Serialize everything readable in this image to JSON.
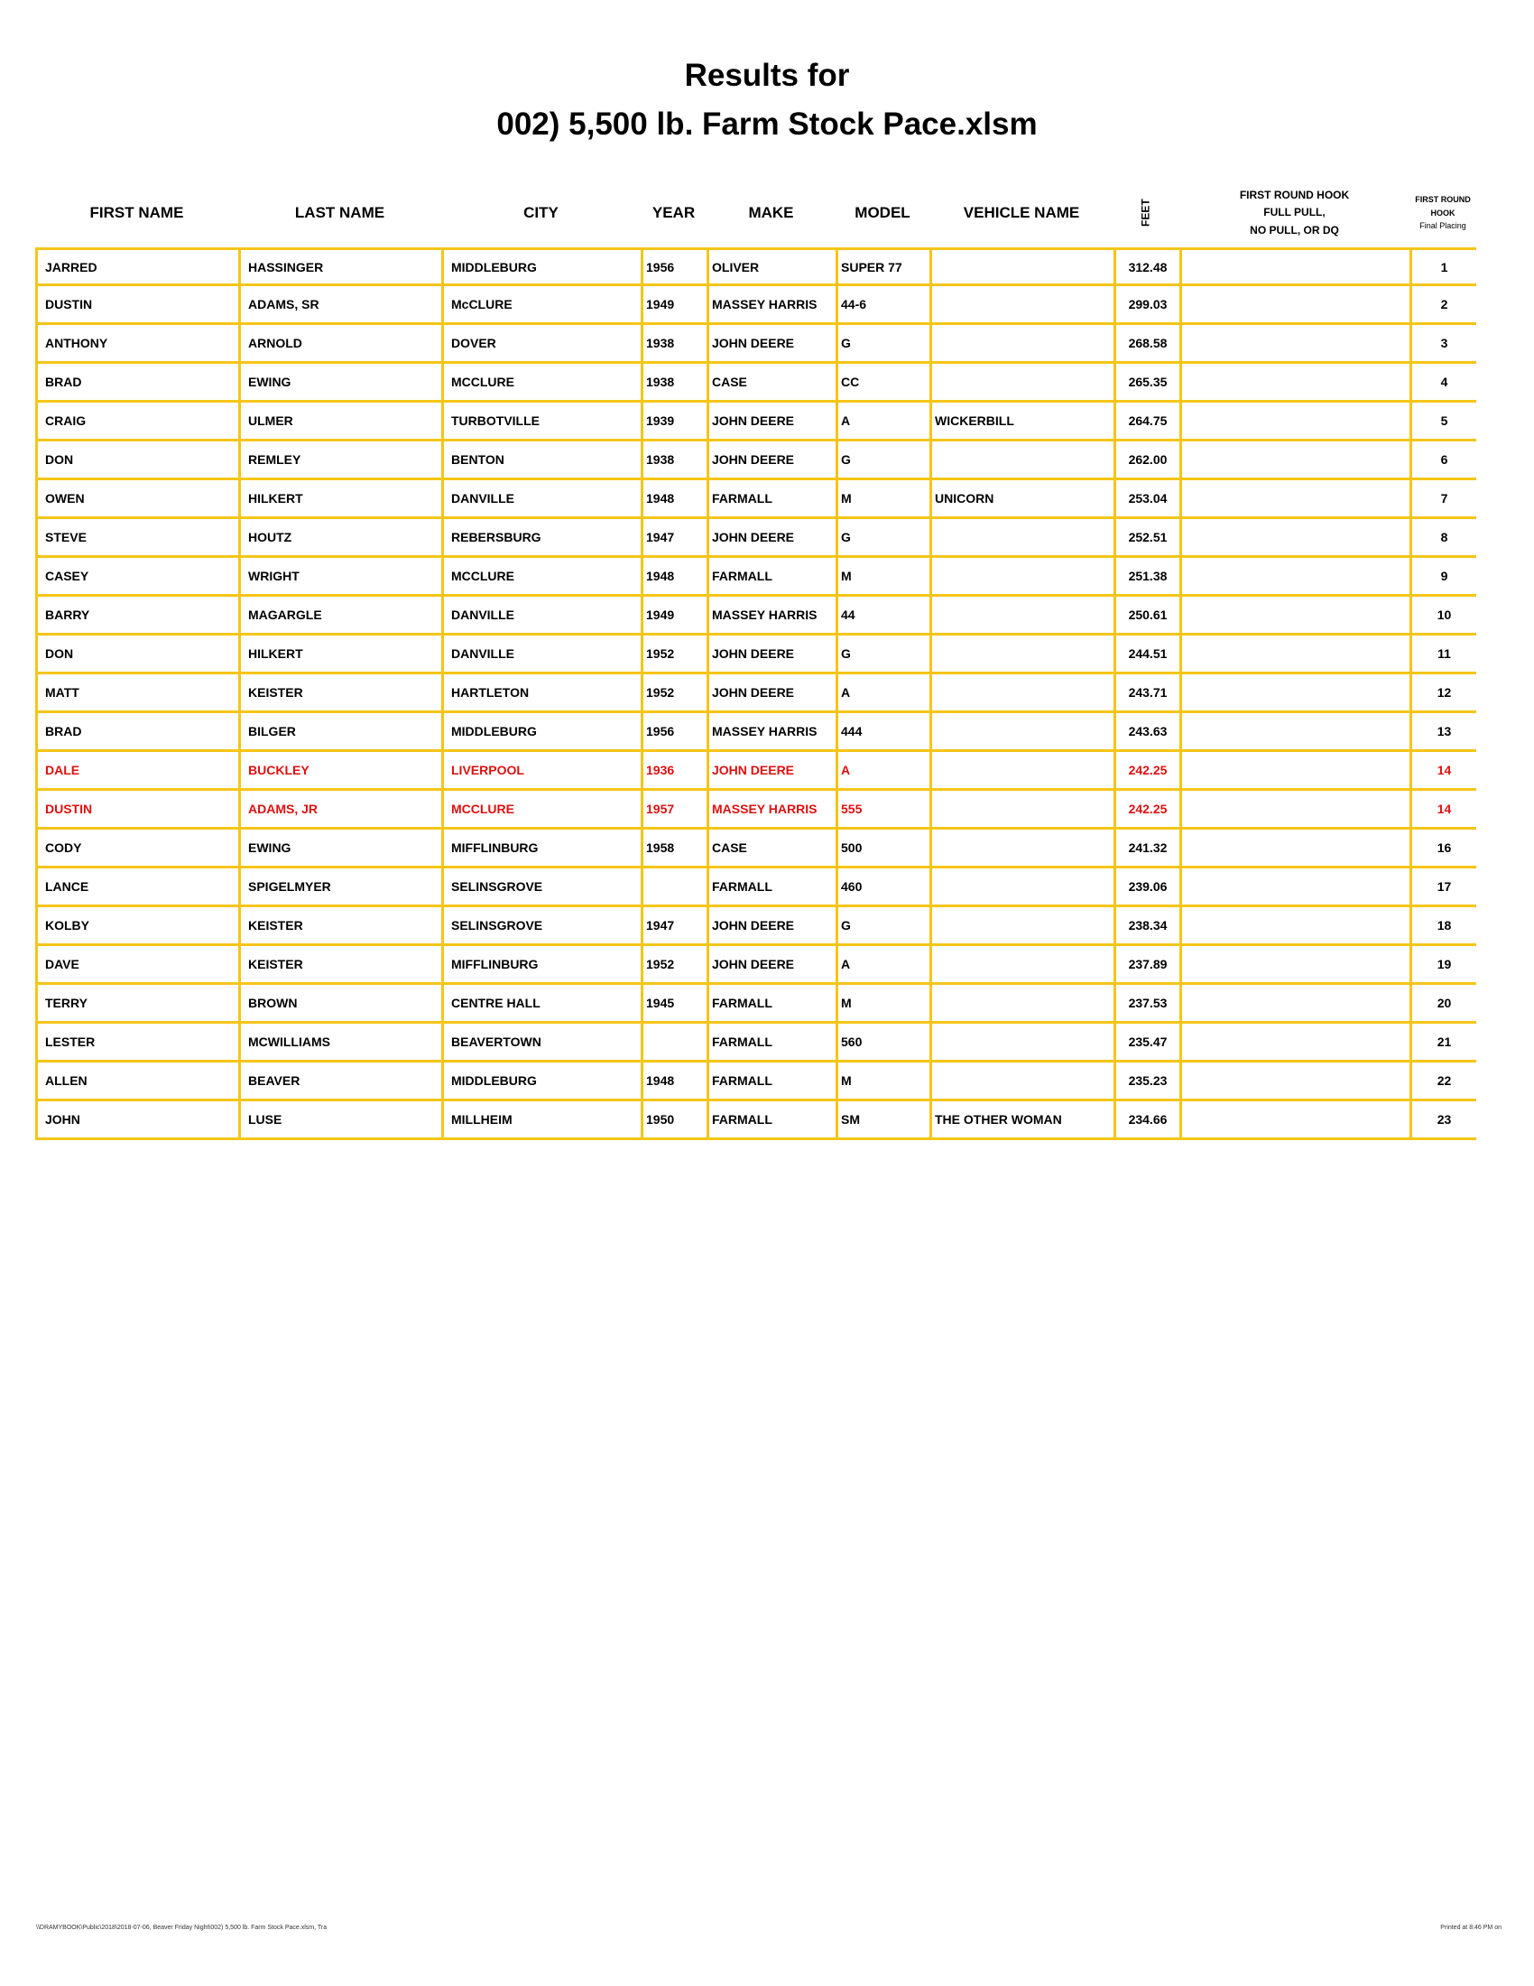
{
  "header": {
    "title_lines": [
      "Results for",
      "002) 5,500 lb. Farm Stock Pace.xlsm"
    ]
  },
  "table": {
    "columns": [
      [
        "FIRST NAME"
      ],
      [
        "LAST NAME"
      ],
      [
        "CITY"
      ],
      [
        "YEAR"
      ],
      [
        "MAKE"
      ],
      [
        "MODEL"
      ],
      [
        "VEHICLE NAME"
      ],
      [
        "FEET"
      ],
      [
        "FIRST ROUND HOOK",
        "FULL PULL,",
        "NO PULL, OR DQ"
      ],
      [
        "FIRST ROUND",
        "HOOK",
        "Final Placing"
      ]
    ],
    "rows": [
      {
        "cells": [
          "JARRED",
          "HASSINGER",
          "MIDDLEBURG",
          "1956",
          "OLIVER",
          "SUPER 77",
          null,
          "312.48",
          null,
          "1"
        ]
      },
      {
        "cells": [
          "DUSTIN",
          "ADAMS, SR",
          "McCLURE",
          "1949",
          "MASSEY HARRIS",
          "44-6",
          null,
          "299.03",
          null,
          "2"
        ]
      },
      {
        "cells": [
          "ANTHONY",
          "ARNOLD",
          "DOVER",
          "1938",
          "JOHN DEERE",
          "G",
          null,
          "268.58",
          null,
          "3"
        ]
      },
      {
        "cells": [
          "BRAD",
          "EWING",
          "MCCLURE",
          "1938",
          "CASE",
          "CC",
          null,
          "265.35",
          null,
          "4"
        ]
      },
      {
        "cells": [
          "CRAIG",
          "ULMER",
          "TURBOTVILLE",
          "1939",
          "JOHN DEERE",
          "A",
          "WICKERBILL",
          "264.75",
          null,
          "5"
        ]
      },
      {
        "cells": [
          "DON",
          "REMLEY",
          "BENTON",
          "1938",
          "JOHN DEERE",
          "G",
          null,
          "262.00",
          null,
          "6"
        ]
      },
      {
        "cells": [
          "OWEN",
          "HILKERT",
          "DANVILLE",
          "1948",
          "FARMALL",
          "M",
          "UNICORN",
          "253.04",
          null,
          "7"
        ]
      },
      {
        "cells": [
          "STEVE",
          "HOUTZ",
          "REBERSBURG",
          "1947",
          "JOHN DEERE",
          "G",
          null,
          "252.51",
          null,
          "8"
        ]
      },
      {
        "cells": [
          "CASEY",
          "WRIGHT",
          "MCCLURE",
          "1948",
          "FARMALL",
          "M",
          null,
          "251.38",
          null,
          "9"
        ]
      },
      {
        "cells": [
          "BARRY",
          "MAGARGLE",
          "DANVILLE",
          "1949",
          "MASSEY HARRIS",
          "44",
          null,
          "250.61",
          null,
          "10"
        ]
      },
      {
        "cells": [
          "DON",
          "HILKERT",
          "DANVILLE",
          "1952",
          "JOHN DEERE",
          "G",
          null,
          "244.51",
          null,
          "11"
        ]
      },
      {
        "cells": [
          "MATT",
          "KEISTER",
          "HARTLETON",
          "1952",
          "JOHN DEERE",
          "A",
          null,
          "243.71",
          null,
          "12"
        ]
      },
      {
        "cells": [
          "BRAD",
          "BILGER",
          "MIDDLEBURG",
          "1956",
          "MASSEY HARRIS",
          "444",
          null,
          "243.63",
          null,
          "13"
        ]
      },
      {
        "cells": [
          "DALE",
          "BUCKLEY",
          "LIVERPOOL",
          "1936",
          "JOHN DEERE",
          "A",
          null,
          "242.25",
          null,
          "14"
        ],
        "color": "#e01010"
      },
      {
        "cells": [
          "DUSTIN",
          "ADAMS, JR",
          "MCCLURE",
          "1957",
          "MASSEY HARRIS",
          "555",
          null,
          "242.25",
          null,
          "14"
        ],
        "color": "#e01010"
      },
      {
        "cells": [
          "CODY",
          "EWING",
          "MIFFLINBURG",
          "1958",
          "CASE",
          "500",
          null,
          "241.32",
          null,
          "16"
        ]
      },
      {
        "cells": [
          "LANCE",
          "SPIGELMYER",
          "SELINSGROVE",
          null,
          "FARMALL",
          "460",
          null,
          "239.06",
          null,
          "17"
        ]
      },
      {
        "cells": [
          "KOLBY",
          "KEISTER",
          "SELINSGROVE",
          "1947",
          "JOHN DEERE",
          "G",
          null,
          "238.34",
          null,
          "18"
        ]
      },
      {
        "cells": [
          "DAVE",
          "KEISTER",
          "MIFFLINBURG",
          "1952",
          "JOHN DEERE",
          "A",
          null,
          "237.89",
          null,
          "19"
        ]
      },
      {
        "cells": [
          "TERRY",
          "BROWN",
          "CENTRE HALL",
          "1945",
          "FARMALL",
          "M",
          null,
          "237.53",
          null,
          "20"
        ]
      },
      {
        "cells": [
          "LESTER",
          "MCWILLIAMS",
          "BEAVERTOWN",
          null,
          "FARMALL",
          "560",
          null,
          "235.47",
          null,
          "21"
        ]
      },
      {
        "cells": [
          "ALLEN",
          "BEAVER",
          "MIDDLEBURG",
          "1948",
          "FARMALL",
          "M",
          null,
          "235.23",
          null,
          "22"
        ]
      },
      {
        "cells": [
          "JOHN",
          "LUSE",
          "MILLHEIM",
          "1950",
          "FARMALL",
          "SM",
          "THE OTHER WOMAN",
          "234.66",
          null,
          "23"
        ]
      }
    ],
    "border_color": "#f5c518"
  },
  "footer": {
    "left": "\\\\DRAMYBOOK\\Public\\2018\\2018-07-06, Beaver Friday Night\\002) 5,500 lb. Farm Stock Pace.xlsm, Tra",
    "right": "Printed at 8:46 PM on"
  }
}
